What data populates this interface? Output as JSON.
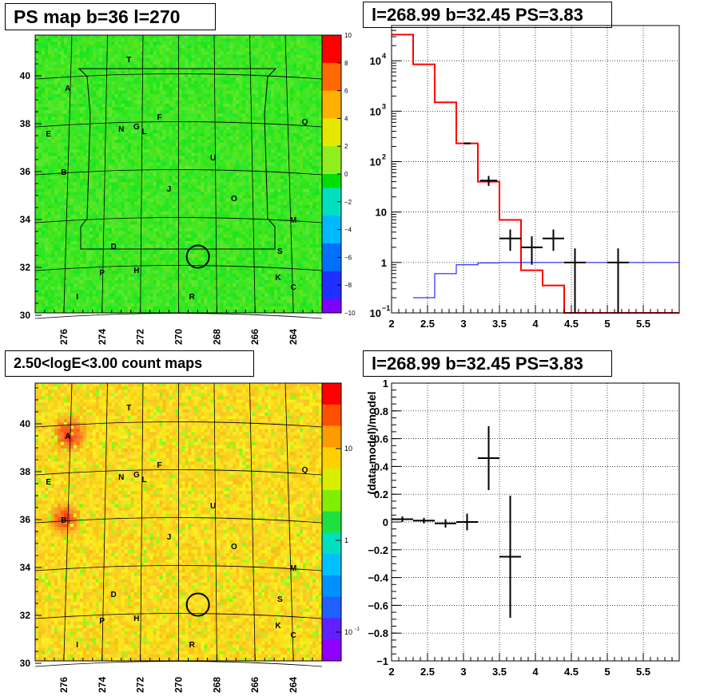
{
  "panels": {
    "ps_map": {
      "title": "PS map b=36 l=270"
    },
    "spectrum": {
      "title": "l=268.99 b=32.45 PS=3.83"
    },
    "count_map": {
      "title": "2.50<logE<3.00 count maps"
    },
    "residual": {
      "title": "l=268.99 b=32.45 PS=3.83"
    }
  },
  "map_axes": {
    "x_ticks": [
      "276",
      "274",
      "272",
      "270",
      "268",
      "266",
      "264"
    ],
    "ps_y_ticks": [
      "30",
      "32",
      "34",
      "36",
      "38",
      "40"
    ],
    "count_y_ticks": [
      "30",
      "32",
      "34",
      "36",
      "38",
      "40"
    ]
  },
  "ps_colorbar": {
    "ticks": [
      "10",
      "8",
      "6",
      "4",
      "2",
      "0",
      "−2",
      "−4",
      "−6",
      "−8",
      "−10"
    ]
  },
  "count_colorbar": {
    "ticks": [
      "10",
      "1",
      "10"
    ],
    "exp": "−1"
  },
  "source_labels": [
    {
      "id": "T",
      "l": 272.6,
      "b": 40.7
    },
    {
      "id": "A",
      "l": 275.8,
      "b": 39.5
    },
    {
      "id": "E",
      "l": 276.8,
      "b": 37.6
    },
    {
      "id": "N",
      "l": 273.0,
      "b": 37.8
    },
    {
      "id": "G",
      "l": 272.2,
      "b": 37.9
    },
    {
      "id": "L",
      "l": 271.8,
      "b": 37.7
    },
    {
      "id": "F",
      "l": 271.0,
      "b": 38.3
    },
    {
      "id": "Q",
      "l": 263.4,
      "b": 38.1
    },
    {
      "id": "B",
      "l": 276.0,
      "b": 36.0
    },
    {
      "id": "U",
      "l": 268.2,
      "b": 36.6
    },
    {
      "id": "J",
      "l": 270.5,
      "b": 35.3
    },
    {
      "id": "O",
      "l": 267.1,
      "b": 34.9
    },
    {
      "id": "M",
      "l": 264.0,
      "b": 34.0
    },
    {
      "id": "D",
      "l": 273.4,
      "b": 32.9
    },
    {
      "id": "S",
      "l": 264.7,
      "b": 32.7
    },
    {
      "id": "P",
      "l": 274.0,
      "b": 31.8
    },
    {
      "id": "H",
      "l": 272.2,
      "b": 31.9
    },
    {
      "id": "K",
      "l": 264.8,
      "b": 31.6
    },
    {
      "id": "C",
      "l": 264.0,
      "b": 31.2
    },
    {
      "id": "I",
      "l": 275.3,
      "b": 30.8
    },
    {
      "id": "R",
      "l": 269.3,
      "b": 30.8
    }
  ],
  "ps_circle": {
    "l": 268.99,
    "b": 32.45
  },
  "chart_data": [
    {
      "type": "line",
      "log_y": true,
      "xlim": [
        2,
        6
      ],
      "ylim": [
        0.1,
        50000
      ],
      "x_ticks": [
        "2",
        "2.5",
        "3",
        "3.5",
        "4",
        "4.5",
        "5",
        "5.5"
      ],
      "y_ticks": [
        {
          "base": "10",
          "exp": "−1"
        },
        {
          "base": "1",
          "exp": ""
        },
        {
          "base": "10",
          "exp": ""
        },
        {
          "base": "10",
          "exp": "2"
        },
        {
          "base": "10",
          "exp": "3"
        },
        {
          "base": "10",
          "exp": "4"
        }
      ],
      "grid": true,
      "series": [
        {
          "kind": "step",
          "color": "#ff0000",
          "edges": [
            2.0,
            2.3,
            2.6,
            2.9,
            3.2,
            3.5,
            3.8,
            4.1,
            4.4,
            6.0
          ],
          "values": [
            33000,
            8500,
            1500,
            230,
            40,
            7,
            0.7,
            0.35,
            0.1
          ]
        },
        {
          "kind": "step",
          "color": "#0000ff",
          "edges": [
            2.3,
            2.6,
            2.9,
            3.2,
            3.5,
            6.0
          ],
          "values": [
            0.2,
            0.6,
            0.9,
            0.98,
            1.0
          ]
        },
        {
          "kind": "errorbars",
          "color": "#000000",
          "points": [
            {
              "x": 3.05,
              "xerr": 0.05,
              "y": 230,
              "ylo": 220,
              "yhi": 240
            },
            {
              "x": 3.35,
              "xerr": 0.12,
              "y": 42,
              "ylo": 33,
              "yhi": 52
            },
            {
              "x": 3.65,
              "xerr": 0.15,
              "y": 3.0,
              "ylo": 1.7,
              "yhi": 4.5
            },
            {
              "x": 3.95,
              "xerr": 0.15,
              "y": 2.0,
              "ylo": 0.9,
              "yhi": 3.3
            },
            {
              "x": 4.25,
              "xerr": 0.15,
              "y": 3.0,
              "ylo": 1.7,
              "yhi": 4.5
            },
            {
              "x": 4.55,
              "xerr": 0.15,
              "y": 1.0,
              "ylo": 0.1,
              "yhi": 1.9
            },
            {
              "x": 5.15,
              "xerr": 0.15,
              "y": 1.0,
              "ylo": 0.1,
              "yhi": 1.9
            }
          ]
        }
      ]
    },
    {
      "type": "scatter",
      "xlim": [
        2,
        6
      ],
      "ylim": [
        -1,
        1
      ],
      "ylabel": "(data-model)/model",
      "x_ticks": [
        "2",
        "2.5",
        "3",
        "3.5",
        "4",
        "4.5",
        "5",
        "5.5"
      ],
      "y_ticks": [
        "−1",
        "−0.8",
        "−0.6",
        "−0.4",
        "−0.2",
        "0",
        "0.2",
        "0.4",
        "0.6",
        "0.8",
        "1"
      ],
      "grid": true,
      "points": [
        {
          "x": 2.15,
          "xerr": 0.15,
          "y": 0.02,
          "yerr": 0.02
        },
        {
          "x": 2.45,
          "xerr": 0.15,
          "y": 0.01,
          "yerr": 0.02
        },
        {
          "x": 2.75,
          "xerr": 0.15,
          "y": -0.01,
          "yerr": 0.03
        },
        {
          "x": 3.05,
          "xerr": 0.15,
          "y": 0.0,
          "yerr": 0.06
        },
        {
          "x": 3.35,
          "xerr": 0.15,
          "y": 0.46,
          "yerr": 0.23
        },
        {
          "x": 3.65,
          "xerr": 0.15,
          "y": -0.25,
          "yerr": 0.44
        }
      ]
    }
  ]
}
